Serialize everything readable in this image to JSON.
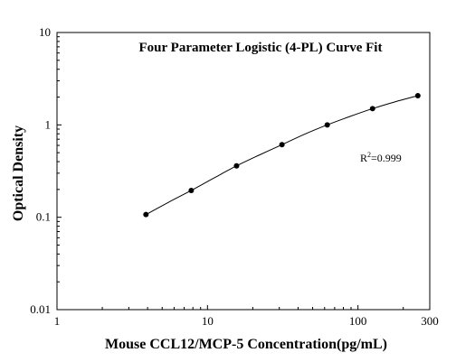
{
  "chart_data": {
    "type": "scatter",
    "title": "Four Parameter Logistic (4-PL) Curve Fit",
    "xlabel": "Mouse CCL12/MCP-5 Concentration(pg/mL)",
    "ylabel": "Optical Density",
    "x_scale": "log",
    "y_scale": "log",
    "xlim": [
      1,
      300
    ],
    "ylim": [
      0.01,
      10
    ],
    "x_ticks": [
      1,
      10,
      100,
      300
    ],
    "x_tick_labels": [
      "1",
      "10",
      "100",
      "300"
    ],
    "y_ticks": [
      0.01,
      0.1,
      1,
      10
    ],
    "y_tick_labels": [
      "0.01",
      "0.1",
      "1",
      "10"
    ],
    "grid": false,
    "series": [
      {
        "points": [
          {
            "x": 3.9,
            "y": 0.107
          },
          {
            "x": 7.8,
            "y": 0.195
          },
          {
            "x": 15.6,
            "y": 0.36
          },
          {
            "x": 31.25,
            "y": 0.61
          },
          {
            "x": 62.5,
            "y": 1.0
          },
          {
            "x": 125,
            "y": 1.5
          },
          {
            "x": 250,
            "y": 2.07
          }
        ],
        "marker": "circle",
        "color": "#000000"
      }
    ],
    "fit_curve": {
      "model": "4-PL",
      "points": [
        {
          "x": 3.9,
          "y": 0.107
        },
        {
          "x": 5.5,
          "y": 0.145
        },
        {
          "x": 7.8,
          "y": 0.195
        },
        {
          "x": 11,
          "y": 0.265
        },
        {
          "x": 15.6,
          "y": 0.36
        },
        {
          "x": 22,
          "y": 0.47
        },
        {
          "x": 31.25,
          "y": 0.61
        },
        {
          "x": 44,
          "y": 0.79
        },
        {
          "x": 62.5,
          "y": 1.0
        },
        {
          "x": 88,
          "y": 1.23
        },
        {
          "x": 125,
          "y": 1.5
        },
        {
          "x": 177,
          "y": 1.78
        },
        {
          "x": 250,
          "y": 2.07
        }
      ]
    },
    "annotation": {
      "base": "R",
      "sup": "2",
      "value": "=0.999"
    }
  }
}
